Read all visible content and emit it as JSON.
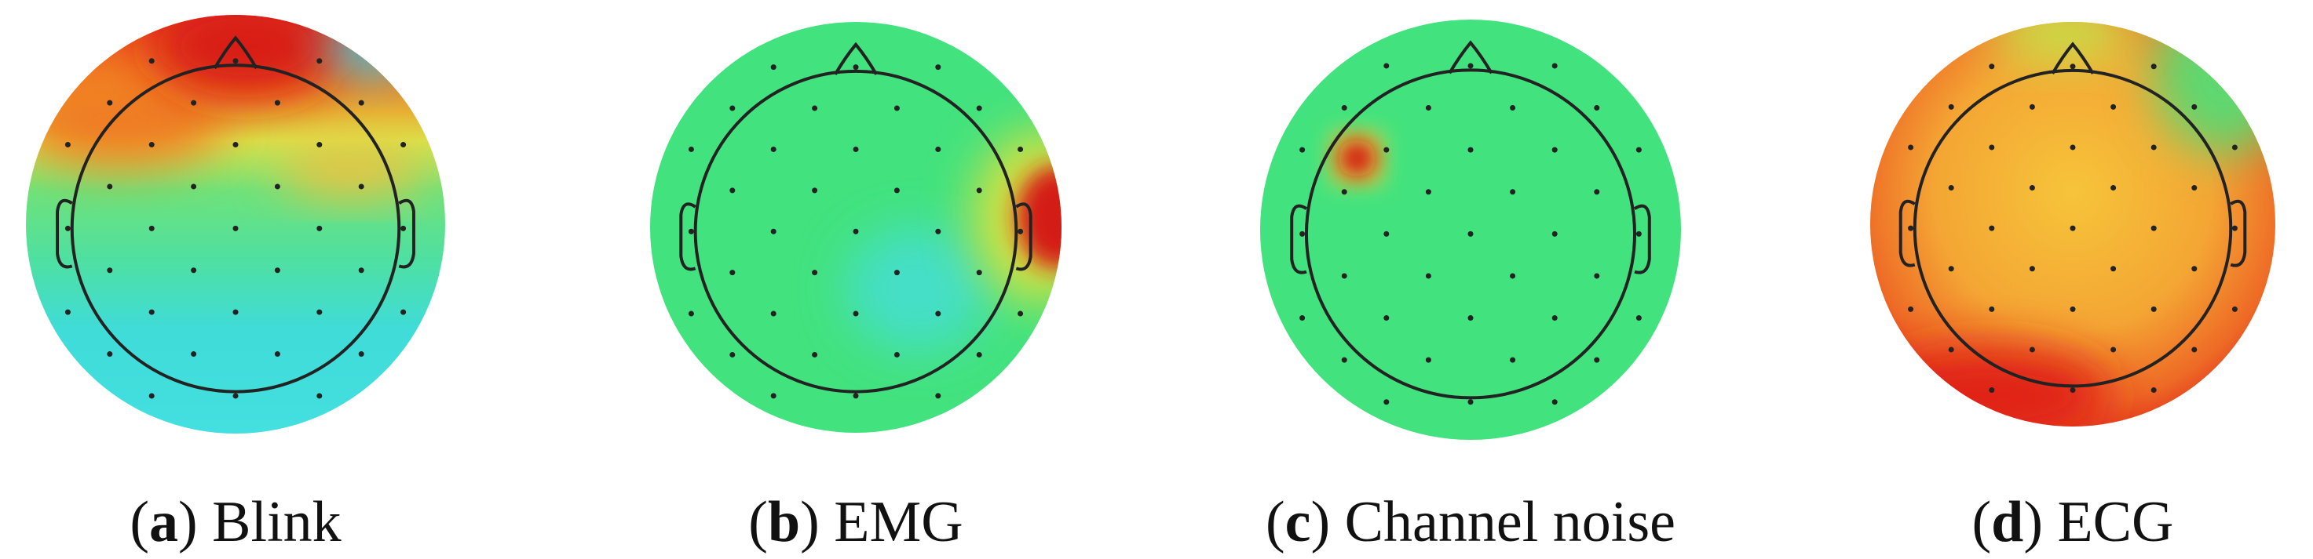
{
  "panels": [
    {
      "open": "(",
      "letter": "a",
      "rest": ") Blink"
    },
    {
      "open": "(",
      "letter": "b",
      "rest": ") EMG"
    },
    {
      "open": "(",
      "letter": "c",
      "rest": ") Channel noise"
    },
    {
      "open": "(",
      "letter": "d",
      "rest": ") ECG"
    }
  ]
}
